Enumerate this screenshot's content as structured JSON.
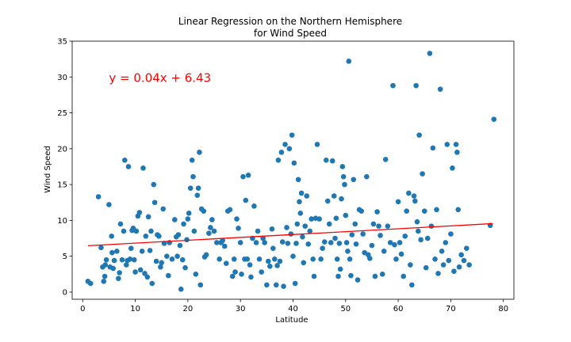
{
  "chart_data": {
    "type": "scatter",
    "title_line1": "Linear Regression on the Northern Hemisphere",
    "title_line2": "for Wind Speed",
    "xlabel": "Latitude",
    "ylabel": "Wind Speed",
    "xlim": [
      -2,
      82
    ],
    "ylim": [
      -1,
      35
    ],
    "xticks": [
      0,
      10,
      20,
      30,
      40,
      50,
      60,
      70,
      80
    ],
    "yticks": [
      0,
      5,
      10,
      15,
      20,
      25,
      30,
      35
    ],
    "grid": false,
    "marker_color": "#1f77b4",
    "line_color": "#ff0000",
    "regression": {
      "equation": "y = 0.04x + 6.43",
      "slope": 0.04,
      "intercept": 6.43,
      "x_range": [
        1,
        78
      ],
      "label_x": 5,
      "label_y": 30
    },
    "points": [
      [
        1,
        1.5
      ],
      [
        1.5,
        1.2
      ],
      [
        3,
        13.3
      ],
      [
        3.5,
        6.2
      ],
      [
        3.8,
        3.5
      ],
      [
        4,
        1.5
      ],
      [
        4.2,
        2.2
      ],
      [
        4.3,
        3.8
      ],
      [
        4.5,
        4.5
      ],
      [
        5,
        12.2
      ],
      [
        5.2,
        3.5
      ],
      [
        5.5,
        7.8
      ],
      [
        5.6,
        5.5
      ],
      [
        5.8,
        3.3
      ],
      [
        6,
        4.4
      ],
      [
        6.5,
        5.7
      ],
      [
        6.8,
        1.9
      ],
      [
        7,
        2.7
      ],
      [
        7.2,
        9.5
      ],
      [
        7.5,
        4.5
      ],
      [
        7.8,
        8.5
      ],
      [
        8,
        18.4
      ],
      [
        8.3,
        3.8
      ],
      [
        8.5,
        4.4
      ],
      [
        8.7,
        17.5
      ],
      [
        9,
        4.6
      ],
      [
        9.2,
        6.1
      ],
      [
        9.4,
        8.6
      ],
      [
        9.6,
        8.9
      ],
      [
        9.8,
        4.5
      ],
      [
        10,
        2.8
      ],
      [
        10.2,
        8.5
      ],
      [
        10.5,
        10.6
      ],
      [
        10.8,
        11.1
      ],
      [
        11,
        3.1
      ],
      [
        11.3,
        5.7
      ],
      [
        11.5,
        17.3
      ],
      [
        11.8,
        2.6
      ],
      [
        12,
        7.8
      ],
      [
        12.3,
        2.1
      ],
      [
        12.5,
        10.5
      ],
      [
        12.8,
        5.8
      ],
      [
        13,
        8.5
      ],
      [
        13.2,
        1.2
      ],
      [
        13.5,
        15
      ],
      [
        13.7,
        12.5
      ],
      [
        14,
        4.3
      ],
      [
        14.2,
        8
      ],
      [
        14.5,
        7.8
      ],
      [
        14.8,
        3.5
      ],
      [
        15,
        4.1
      ],
      [
        15.3,
        11.6
      ],
      [
        15.5,
        6.8
      ],
      [
        16,
        5
      ],
      [
        16.3,
        2.3
      ],
      [
        16.5,
        6.9
      ],
      [
        17,
        4.6
      ],
      [
        17.5,
        10.1
      ],
      [
        17.8,
        7.7
      ],
      [
        18,
        5
      ],
      [
        18.2,
        8
      ],
      [
        18.5,
        6.5
      ],
      [
        18.7,
        0.4
      ],
      [
        19,
        4.5
      ],
      [
        19.2,
        9.5
      ],
      [
        19.5,
        3.4
      ],
      [
        19.8,
        7.3
      ],
      [
        20,
        10.2
      ],
      [
        20.2,
        11
      ],
      [
        20.5,
        14.5
      ],
      [
        20.8,
        18.4
      ],
      [
        21,
        16.1
      ],
      [
        21.2,
        8.5
      ],
      [
        21.5,
        2.5
      ],
      [
        21.8,
        13.5
      ],
      [
        22,
        14.5
      ],
      [
        22.2,
        19.5
      ],
      [
        22.4,
        1
      ],
      [
        22.6,
        11.6
      ],
      [
        23,
        11.3
      ],
      [
        23.2,
        4.9
      ],
      [
        23.5,
        5.2
      ],
      [
        24,
        8.2
      ],
      [
        24.3,
        9
      ],
      [
        24.6,
        10.1
      ],
      [
        25,
        8.5
      ],
      [
        25.5,
        6.9
      ],
      [
        26,
        4.6
      ],
      [
        26.3,
        6.9
      ],
      [
        26.6,
        7.2
      ],
      [
        27,
        6.4
      ],
      [
        27.3,
        4
      ],
      [
        27.6,
        11.3
      ],
      [
        28,
        11.5
      ],
      [
        28.5,
        2.2
      ],
      [
        28.8,
        4.6
      ],
      [
        29,
        2.8
      ],
      [
        29.3,
        10.2
      ],
      [
        29.6,
        8.9
      ],
      [
        30,
        6.9
      ],
      [
        30.2,
        2.5
      ],
      [
        30.5,
        16.1
      ],
      [
        30.8,
        4.6
      ],
      [
        31,
        12.8
      ],
      [
        31.3,
        4.6
      ],
      [
        31.5,
        16.3
      ],
      [
        31.8,
        3.8
      ],
      [
        32,
        2.1
      ],
      [
        32.3,
        7.5
      ],
      [
        32.6,
        12
      ],
      [
        33,
        6.9
      ],
      [
        33.3,
        8.5
      ],
      [
        33.6,
        4.6
      ],
      [
        34,
        2.8
      ],
      [
        34.3,
        7.5
      ],
      [
        34.6,
        6.9
      ],
      [
        35,
        1
      ],
      [
        35.3,
        4.3
      ],
      [
        35.6,
        3.6
      ],
      [
        36,
        8.8
      ],
      [
        36.2,
        6.1
      ],
      [
        36.5,
        4.6
      ],
      [
        36.8,
        1
      ],
      [
        37,
        3.7
      ],
      [
        37.2,
        18.4
      ],
      [
        37.5,
        4.3
      ],
      [
        37.8,
        19.5
      ],
      [
        38,
        7
      ],
      [
        38.2,
        0.8
      ],
      [
        38.5,
        20.6
      ],
      [
        38.8,
        9
      ],
      [
        39,
        6.8
      ],
      [
        39.3,
        20
      ],
      [
        39.6,
        8.1
      ],
      [
        39.8,
        21.9
      ],
      [
        40,
        5
      ],
      [
        40.2,
        18
      ],
      [
        40.4,
        1.2
      ],
      [
        40.6,
        6.8
      ],
      [
        40.8,
        9.5
      ],
      [
        41,
        15.7
      ],
      [
        41.2,
        12.6
      ],
      [
        41.4,
        11
      ],
      [
        41.6,
        13.8
      ],
      [
        41.8,
        7.7
      ],
      [
        42,
        4.1
      ],
      [
        42.3,
        9.2
      ],
      [
        42.6,
        13.4
      ],
      [
        42.9,
        6.7
      ],
      [
        43.2,
        8.5
      ],
      [
        43.5,
        10.2
      ],
      [
        43.8,
        4.6
      ],
      [
        44,
        2.2
      ],
      [
        44.3,
        10.3
      ],
      [
        44.6,
        20.6
      ],
      [
        45,
        10.2
      ],
      [
        45.3,
        4.6
      ],
      [
        45.6,
        6.1
      ],
      [
        46,
        7
      ],
      [
        46.3,
        18.4
      ],
      [
        46.6,
        12.7
      ],
      [
        46.9,
        9.5
      ],
      [
        47.2,
        6.9
      ],
      [
        47.5,
        18.3
      ],
      [
        47.8,
        13.4
      ],
      [
        48,
        7.5
      ],
      [
        48.2,
        10.3
      ],
      [
        48.4,
        4.6
      ],
      [
        48.6,
        2.2
      ],
      [
        48.8,
        6.8
      ],
      [
        49,
        3.2
      ],
      [
        49.2,
        13
      ],
      [
        49.4,
        17.5
      ],
      [
        49.6,
        16.1
      ],
      [
        49.8,
        15
      ],
      [
        50,
        10.7
      ],
      [
        50.2,
        6.9
      ],
      [
        50.4,
        5.7
      ],
      [
        50.6,
        32.2
      ],
      [
        50.8,
        4.6
      ],
      [
        51,
        2.3
      ],
      [
        51.2,
        8
      ],
      [
        51.5,
        15.7
      ],
      [
        51.8,
        9.5
      ],
      [
        52,
        6.7
      ],
      [
        52.3,
        1.7
      ],
      [
        52.6,
        11.5
      ],
      [
        53,
        11.3
      ],
      [
        53.3,
        8.1
      ],
      [
        53.6,
        5.5
      ],
      [
        54,
        16.1
      ],
      [
        54.3,
        5.2
      ],
      [
        54.6,
        4.7
      ],
      [
        55,
        6.5
      ],
      [
        55.3,
        9.5
      ],
      [
        55.6,
        2.2
      ],
      [
        56,
        11.2
      ],
      [
        56.3,
        9.2
      ],
      [
        56.6,
        7.9
      ],
      [
        57,
        2.5
      ],
      [
        57.3,
        5.7
      ],
      [
        57.6,
        18.5
      ],
      [
        58,
        9.2
      ],
      [
        58.5,
        6.9
      ],
      [
        59,
        28.8
      ],
      [
        59.3,
        6.6
      ],
      [
        59.6,
        4.6
      ],
      [
        60,
        12.6
      ],
      [
        60.3,
        6.9
      ],
      [
        60.6,
        5.3
      ],
      [
        61,
        2.2
      ],
      [
        61.3,
        7.8
      ],
      [
        61.6,
        11.3
      ],
      [
        62,
        13.8
      ],
      [
        62.3,
        3.8
      ],
      [
        62.6,
        1
      ],
      [
        63,
        13.4
      ],
      [
        63.2,
        12.7
      ],
      [
        63.4,
        28.8
      ],
      [
        63.6,
        9.8
      ],
      [
        63.8,
        8.5
      ],
      [
        64,
        21.9
      ],
      [
        64.3,
        7.3
      ],
      [
        64.6,
        16.5
      ],
      [
        65,
        11.3
      ],
      [
        65.3,
        3.4
      ],
      [
        65.6,
        7.5
      ],
      [
        66,
        33.3
      ],
      [
        66.3,
        9.2
      ],
      [
        66.6,
        20.1
      ],
      [
        67,
        4.6
      ],
      [
        67.3,
        11.5
      ],
      [
        67.6,
        2.6
      ],
      [
        68,
        28.3
      ],
      [
        68.3,
        5.7
      ],
      [
        68.6,
        3.8
      ],
      [
        69,
        6.9
      ],
      [
        69.3,
        20.6
      ],
      [
        69.6,
        4.4
      ],
      [
        70,
        8.1
      ],
      [
        70.3,
        17.3
      ],
      [
        70.6,
        2.9
      ],
      [
        71,
        20.6
      ],
      [
        71.2,
        19.5
      ],
      [
        71.4,
        11.5
      ],
      [
        71.6,
        3.5
      ],
      [
        72,
        5.2
      ],
      [
        72.5,
        4.4
      ],
      [
        73,
        6.1
      ],
      [
        73.5,
        3.8
      ],
      [
        77.5,
        9.3
      ],
      [
        78.2,
        24.1
      ]
    ]
  }
}
